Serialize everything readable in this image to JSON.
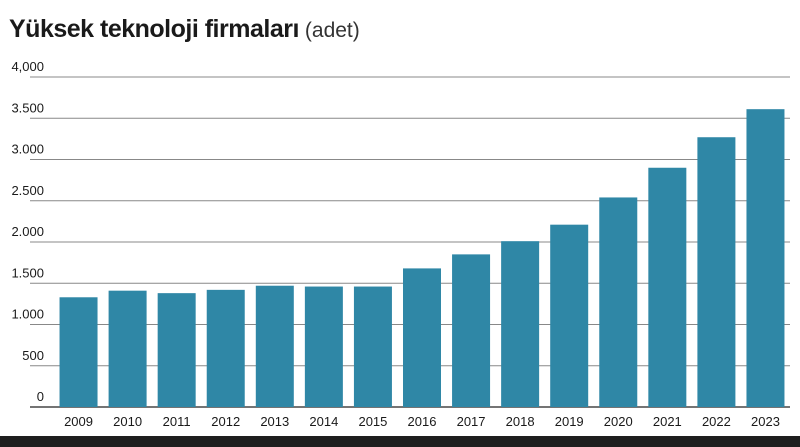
{
  "header": {
    "title": "Yüksek teknoloji firmaları",
    "unit": "(adet)"
  },
  "colors": {
    "bar": "#2f87a6",
    "grid": "#888888",
    "baseline": "#222222"
  },
  "chart_data": {
    "type": "bar",
    "title": "Yüksek teknoloji firmaları",
    "subtitle": "(adet)",
    "xlabel": "",
    "ylabel": "",
    "categories": [
      "2009",
      "2010",
      "2011",
      "2012",
      "2013",
      "2014",
      "2015",
      "2016",
      "2017",
      "2018",
      "2019",
      "2020",
      "2021",
      "2022",
      "2023"
    ],
    "values": [
      1330,
      1410,
      1380,
      1420,
      1470,
      1460,
      1460,
      1680,
      1850,
      2010,
      2210,
      2540,
      2900,
      3270,
      3610
    ],
    "ylim": [
      0,
      4000
    ],
    "yticks": [
      0,
      500,
      1000,
      1500,
      2000,
      2500,
      3000,
      3500,
      4000
    ],
    "ytick_labels": [
      "0",
      "500",
      "1.000",
      "1.500",
      "2.000",
      "2.500",
      "3.000",
      "3.500",
      "4,000"
    ],
    "grid": true,
    "legend": "none"
  }
}
